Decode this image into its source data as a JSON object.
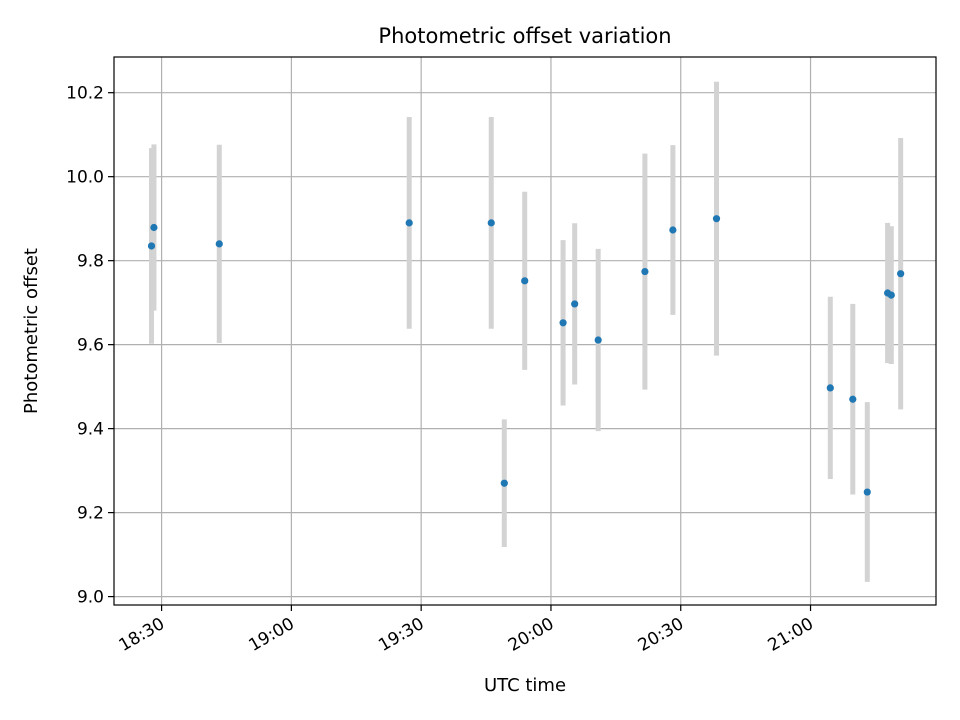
{
  "chart_data": {
    "type": "scatter",
    "title": "Photometric offset variation",
    "xlabel": "UTC time",
    "ylabel": "Photometric offset",
    "xlim": [
      "18:19",
      "21:29"
    ],
    "ylim": [
      8.98,
      10.285
    ],
    "x_ticks": [
      "18:30",
      "19:00",
      "19:30",
      "20:00",
      "20:30",
      "21:00"
    ],
    "y_ticks": [
      9.0,
      9.2,
      9.4,
      9.6,
      9.8,
      10.0,
      10.2
    ],
    "y_tick_labels": [
      "9.0",
      "9.2",
      "9.4",
      "9.6",
      "9.8",
      "10.0",
      "10.2"
    ],
    "grid": true,
    "point_color": "#1f77b4",
    "errorbar_color": "#d3d3d3",
    "points": [
      {
        "x": "18:27:40",
        "y": 9.835,
        "yerr": 0.233
      },
      {
        "x": "18:28:14",
        "y": 9.879,
        "yerr": 0.198
      },
      {
        "x": "18:43:20",
        "y": 9.84,
        "yerr": 0.236
      },
      {
        "x": "19:27:14",
        "y": 9.89,
        "yerr": 0.252
      },
      {
        "x": "19:46:12",
        "y": 9.89,
        "yerr": 0.252
      },
      {
        "x": "19:49:13",
        "y": 9.27,
        "yerr": 0.152
      },
      {
        "x": "19:53:56",
        "y": 9.752,
        "yerr": 0.212
      },
      {
        "x": "20:02:48",
        "y": 9.652,
        "yerr": 0.197
      },
      {
        "x": "20:05:29",
        "y": 9.697,
        "yerr": 0.192
      },
      {
        "x": "20:10:55",
        "y": 9.611,
        "yerr": 0.217
      },
      {
        "x": "20:21:43",
        "y": 9.774,
        "yerr": 0.281
      },
      {
        "x": "20:28:11",
        "y": 9.873,
        "yerr": 0.202
      },
      {
        "x": "20:38:16",
        "y": 9.9,
        "yerr": 0.326
      },
      {
        "x": "21:04:34",
        "y": 9.497,
        "yerr": 0.217
      },
      {
        "x": "21:09:46",
        "y": 9.47,
        "yerr": 0.227
      },
      {
        "x": "21:13:07",
        "y": 9.249,
        "yerr": 0.214
      },
      {
        "x": "21:17:49",
        "y": 9.723,
        "yerr": 0.167
      },
      {
        "x": "21:18:40",
        "y": 9.718,
        "yerr": 0.164
      },
      {
        "x": "21:20:50",
        "y": 9.769,
        "yerr": 0.323
      }
    ]
  }
}
